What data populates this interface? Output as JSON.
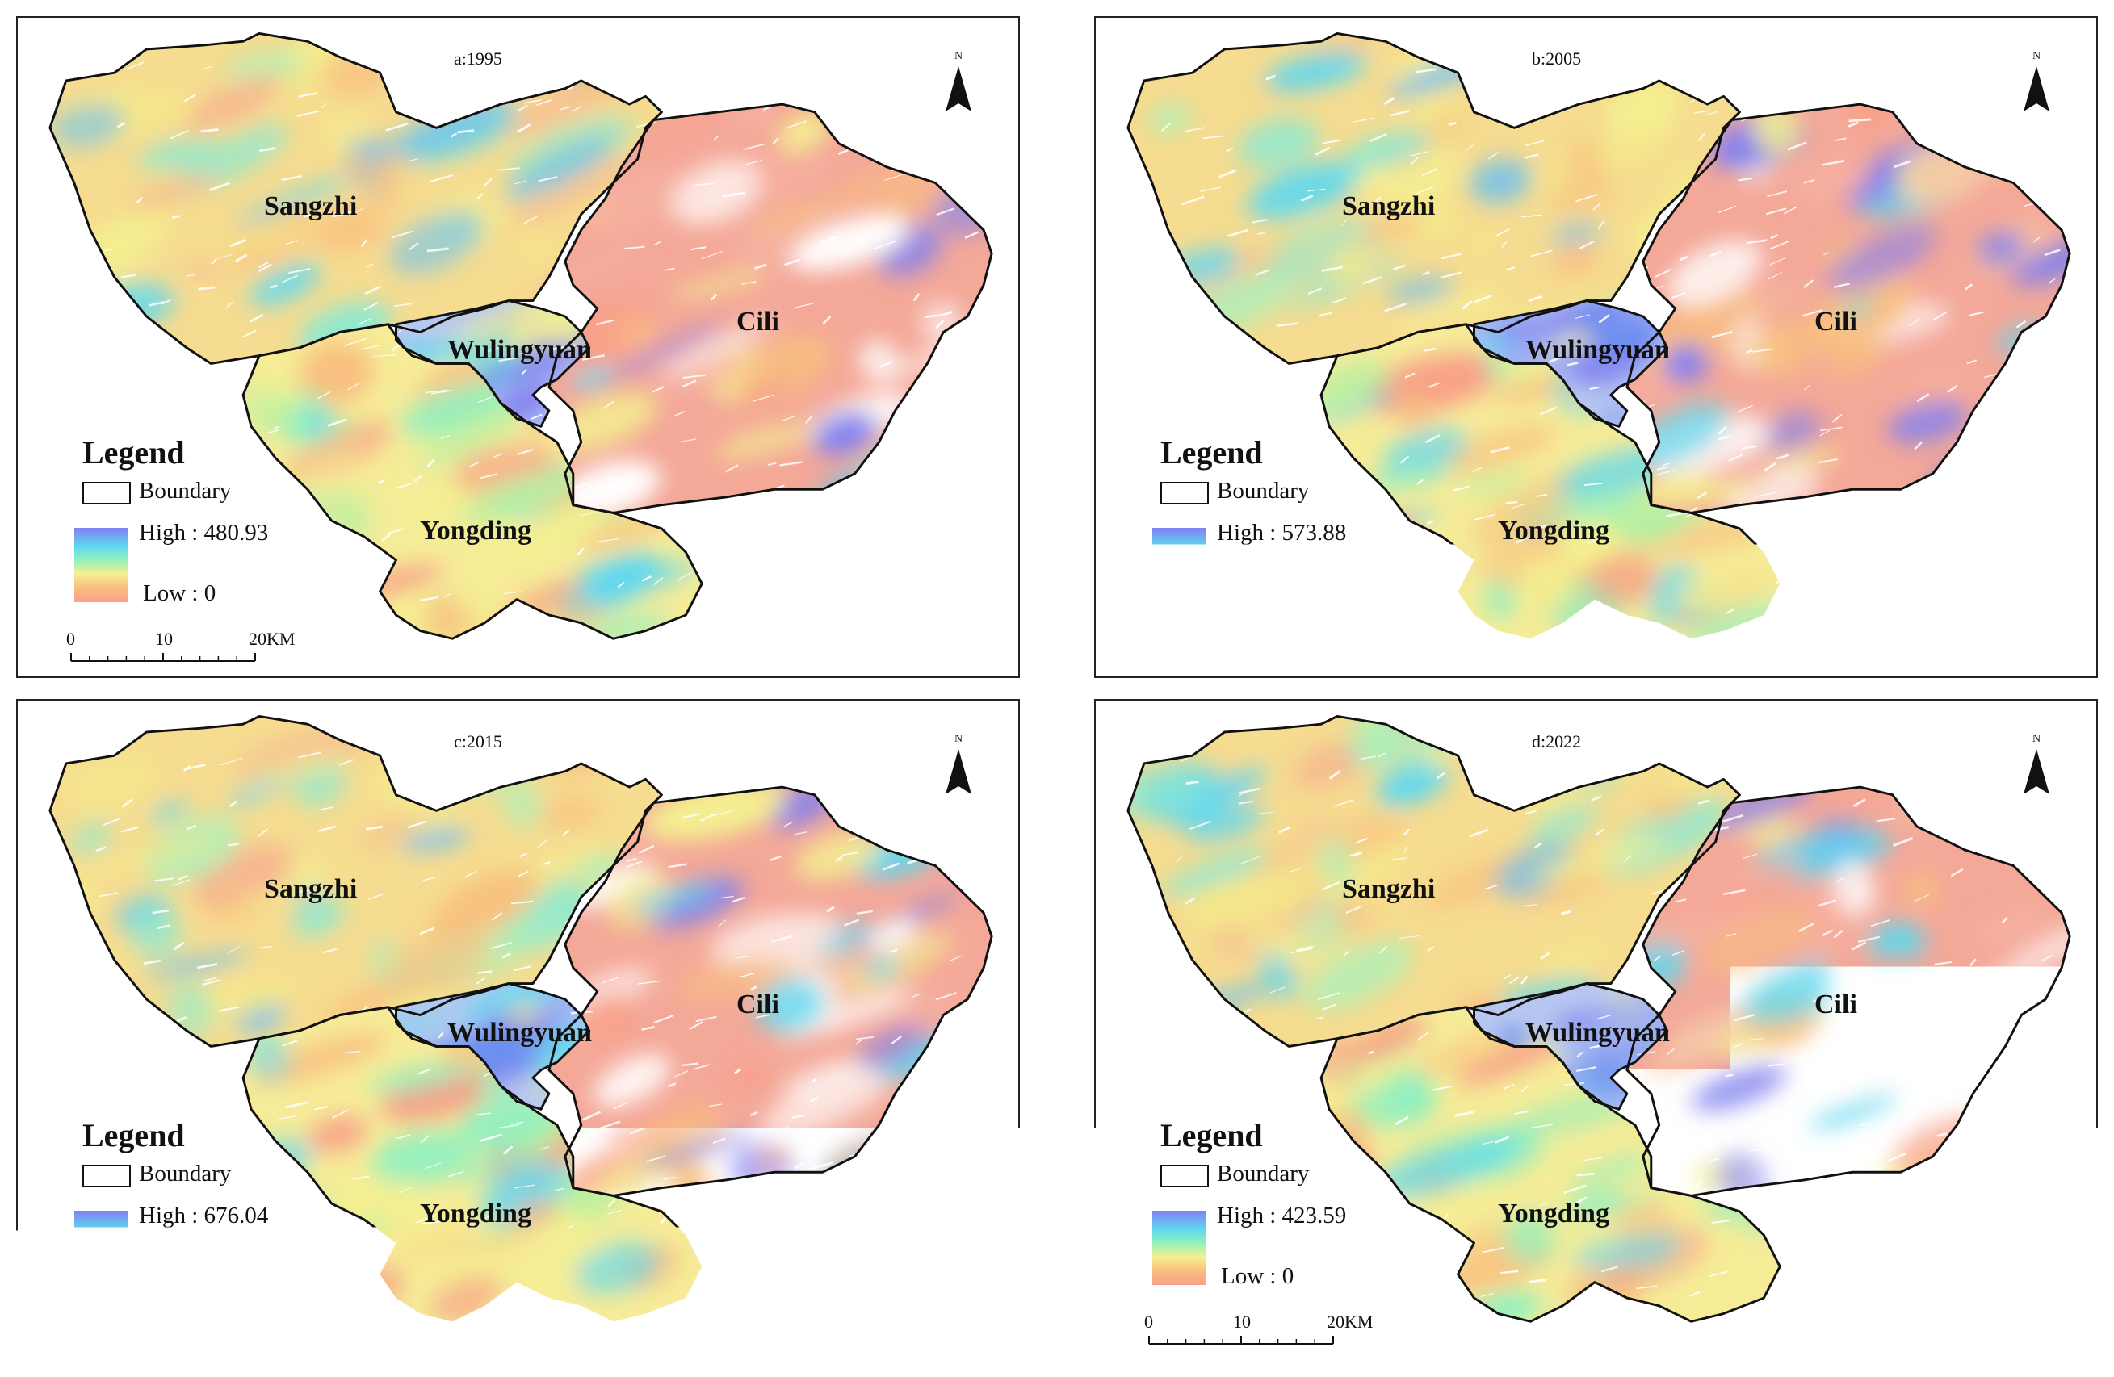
{
  "figure": {
    "panels": [
      {
        "title": "a:1995",
        "high_label": "High : 480.93",
        "high_value": 480.93
      },
      {
        "title": "b:2005",
        "high_label": "High : 573.88",
        "high_value": 573.88
      },
      {
        "title": "c:2015",
        "high_label": "High : 676.04",
        "high_value": 676.04
      },
      {
        "title": "d:2022",
        "high_label": "High : 423.59",
        "high_value": 423.59
      }
    ],
    "regions": {
      "sangzhi": "Sangzhi",
      "cili": "Cili",
      "wulingyuan": "Wulingyuan",
      "yongding": "Yongding"
    },
    "legend": {
      "title": "Legend",
      "boundary": "Boundary",
      "low": "Low : 0",
      "ramp_colors": [
        "#8080f0",
        "#5fd8f0",
        "#8ef0c0",
        "#f4f090",
        "#f8c080",
        "#f8a088"
      ]
    },
    "scale_bar": {
      "ticks": [
        "0",
        "10",
        "20KM"
      ]
    },
    "north_letter": "N"
  }
}
